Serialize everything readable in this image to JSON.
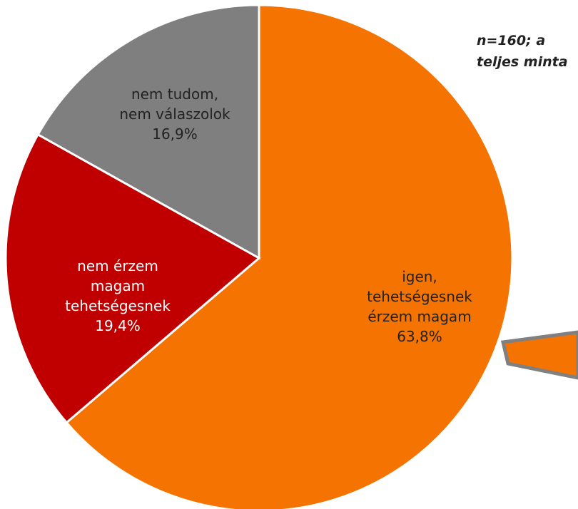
{
  "chart_data": {
    "type": "pie",
    "categories": [
      "igen, tehetségesnek érzem magam",
      "nem érzem magam tehetségesnek",
      "nem tudom, nem válaszolok"
    ],
    "values": [
      63.8,
      19.4,
      16.9
    ],
    "value_labels": [
      "63,8%",
      "19,4%",
      "16,9%"
    ],
    "colors": [
      "#f57300",
      "#c00000",
      "#7f7f7f"
    ],
    "label_colors": [
      "#222222",
      "#ffffff",
      "#222222"
    ],
    "annotation": "n=160; a teljes minta"
  }
}
